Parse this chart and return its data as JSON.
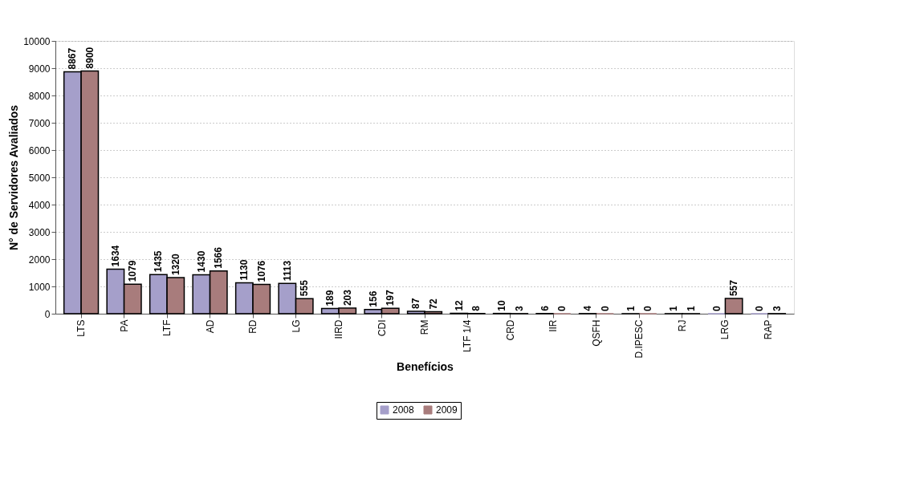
{
  "chart_data": {
    "type": "bar",
    "xlabel": "Benefícios",
    "ylabel": "N° de Servidores Avaliados",
    "categories": [
      "LTS",
      "PA",
      "LTF",
      "AD",
      "RD",
      "LG",
      "IIRD",
      "CDI",
      "RM",
      "LTF 1/4",
      "CRD",
      "IIR",
      "QSFH",
      "D.IPESC",
      "RJ",
      "LRG",
      "RAP"
    ],
    "series": [
      {
        "name": "2008",
        "color": "#a59fca",
        "values": [
          8867,
          1634,
          1435,
          1430,
          1130,
          1113,
          189,
          156,
          87,
          12,
          10,
          6,
          4,
          1,
          1,
          0,
          0
        ]
      },
      {
        "name": "2009",
        "color": "#a87c7c",
        "values": [
          8900,
          1079,
          1320,
          1566,
          1076,
          555,
          203,
          197,
          72,
          8,
          3,
          0,
          0,
          0,
          1,
          557,
          3
        ]
      }
    ],
    "ylim": [
      0,
      10000
    ],
    "yticks": [
      0,
      1000,
      2000,
      3000,
      4000,
      5000,
      6000,
      7000,
      8000,
      9000,
      10000
    ],
    "grid": "y",
    "legend": "bottom",
    "data_labels": true
  }
}
